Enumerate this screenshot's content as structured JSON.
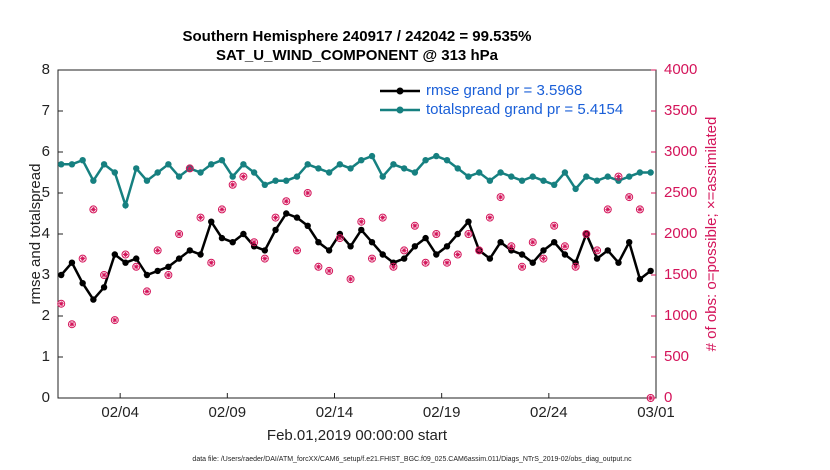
{
  "chart_data": {
    "type": "line",
    "title": "Southern Hemisphere 240917 / 242042 = 99.535%",
    "subtitle": "SAT_U_WIND_COMPONENT @ 313 hPa",
    "x_label": "Feb.01,2019 00:00:00 start",
    "y_label": "rmse and totalspread",
    "y2_label": "# of obs: o=possible; ×=assimilated",
    "footnote": "data file: /Users/raeder/DAI/ATM_forcXX/CAM6_setup/f.e21.FHIST_BGC.f09_025.CAM6assim.011/Diags_NTrS_2019-02/obs_diag_output.nc",
    "x": [
      1.25,
      1.75,
      2.25,
      2.75,
      3.25,
      3.75,
      4.25,
      4.75,
      5.25,
      5.75,
      6.25,
      6.75,
      7.25,
      7.75,
      8.25,
      8.75,
      9.25,
      9.75,
      10.25,
      10.75,
      11.25,
      11.75,
      12.25,
      12.75,
      13.25,
      13.75,
      14.25,
      14.75,
      15.25,
      15.75,
      16.25,
      16.75,
      17.25,
      17.75,
      18.25,
      18.75,
      19.25,
      19.75,
      20.25,
      20.75,
      21.25,
      21.75,
      22.25,
      22.75,
      23.25,
      23.75,
      24.25,
      24.75,
      25.25,
      25.75,
      26.25,
      26.75,
      27.25,
      27.75,
      28.25,
      28.75
    ],
    "xlim": [
      1.1,
      29
    ],
    "xticks": [
      {
        "value": 4,
        "label": "02/04"
      },
      {
        "value": 9,
        "label": "02/09"
      },
      {
        "value": 14,
        "label": "02/14"
      },
      {
        "value": 19,
        "label": "02/19"
      },
      {
        "value": 24,
        "label": "02/24"
      },
      {
        "value": 29,
        "label": "03/01"
      }
    ],
    "ylim": [
      0,
      8
    ],
    "yticks": [
      0,
      1,
      2,
      3,
      4,
      5,
      6,
      7,
      8
    ],
    "y2lim": [
      0,
      4000
    ],
    "y2ticks": [
      0,
      500,
      1000,
      1500,
      2000,
      2500,
      3000,
      3500,
      4000
    ],
    "y2_color": "#d4145a",
    "legend_color": "#1a5fd8",
    "legend": "upper right",
    "series": [
      {
        "name": "rmse grand pr = 3.5968",
        "color": "#000000",
        "values": [
          3.0,
          3.3,
          2.8,
          2.4,
          2.7,
          3.5,
          3.3,
          3.4,
          3.0,
          3.1,
          3.2,
          3.4,
          3.6,
          3.5,
          4.3,
          3.9,
          3.8,
          4.0,
          3.7,
          3.6,
          4.1,
          4.5,
          4.4,
          4.2,
          3.8,
          3.6,
          4.0,
          3.7,
          4.1,
          3.8,
          3.5,
          3.3,
          3.4,
          3.7,
          3.9,
          3.5,
          3.7,
          4.0,
          4.3,
          3.6,
          3.4,
          3.8,
          3.6,
          3.5,
          3.3,
          3.6,
          3.8,
          3.5,
          3.3,
          4.0,
          3.4,
          3.6,
          3.3,
          3.8,
          2.9,
          3.1
        ]
      },
      {
        "name": "totalspread grand pr = 5.4154",
        "color": "#168080",
        "values": [
          5.7,
          5.7,
          5.8,
          5.3,
          5.7,
          5.5,
          4.7,
          5.6,
          5.3,
          5.5,
          5.7,
          5.4,
          5.6,
          5.5,
          5.7,
          5.8,
          5.4,
          5.7,
          5.5,
          5.2,
          5.3,
          5.3,
          5.4,
          5.7,
          5.6,
          5.5,
          5.7,
          5.6,
          5.8,
          5.9,
          5.4,
          5.7,
          5.6,
          5.5,
          5.8,
          5.9,
          5.8,
          5.6,
          5.4,
          5.5,
          5.3,
          5.5,
          5.4,
          5.3,
          5.4,
          5.3,
          5.2,
          5.5,
          5.1,
          5.4,
          5.3,
          5.4,
          5.3,
          5.4,
          5.5,
          5.5
        ]
      },
      {
        "type": "scatter",
        "axis": "y2",
        "color": "#d4145a",
        "values": [
          1150,
          900,
          1700,
          2300,
          1500,
          950,
          1750,
          1600,
          1300,
          1800,
          1500,
          2000,
          2800,
          2200,
          1650,
          2300,
          2600,
          2700,
          1900,
          1700,
          2200,
          2400,
          1800,
          2500,
          1600,
          1550,
          1950,
          1450,
          2150,
          1700,
          2200,
          1600,
          1800,
          2100,
          1650,
          2000,
          1650,
          1750,
          2000,
          1800,
          2200,
          2450,
          1850,
          1600,
          1900,
          1700,
          2100,
          1850,
          1600,
          2000,
          1800,
          2300,
          2700,
          2450,
          2300,
          0
        ]
      }
    ]
  }
}
